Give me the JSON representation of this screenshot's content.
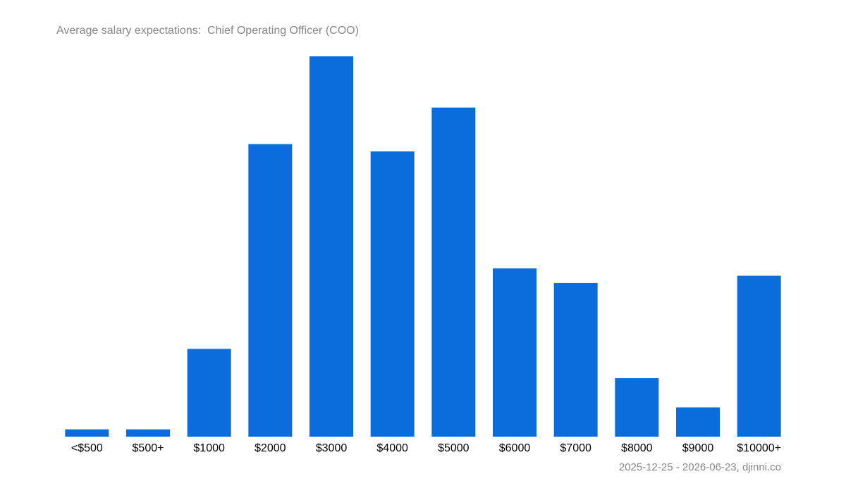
{
  "chart_data": {
    "type": "bar",
    "title": "Average salary expectations:  Chief Operating Officer (COO)",
    "footer": "2025-12-25 - 2026-06-23, djinni.co",
    "categories": [
      "<$500",
      "$500+",
      "$1000",
      "$2000",
      "$3000",
      "$4000",
      "$5000",
      "$6000",
      "$7000",
      "$8000",
      "$9000",
      "$10000+"
    ],
    "values": [
      1,
      1,
      12,
      40,
      52,
      39,
      45,
      23,
      21,
      8,
      4,
      22
    ],
    "color": "#0b6cdb",
    "ylim": [
      0,
      52
    ]
  }
}
